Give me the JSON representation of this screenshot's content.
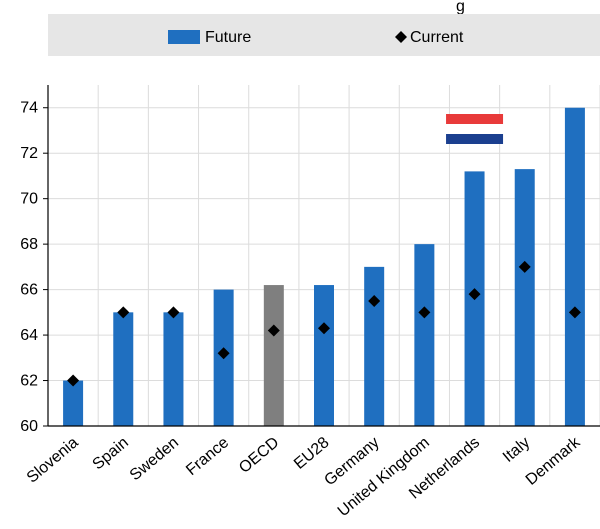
{
  "header_fragment": "g",
  "legend": {
    "future_label": "Future",
    "current_label": "Current"
  },
  "colors": {
    "future": "#1f6fc0",
    "oecd": "#7f7f7f",
    "current_marker": "#000000",
    "legend_bg": "#e6e6e6",
    "fragment_text": "#3a7fc4",
    "flag": [
      "#e83a3a",
      "#ffffff",
      "#1b3f8f"
    ]
  },
  "chart_data": {
    "type": "bar",
    "categories": [
      "Slovenia",
      "Spain",
      "Sweden",
      "France",
      "OECD",
      "EU28",
      "Germany",
      "United Kingdom",
      "Netherlands",
      "Italy",
      "Denmark"
    ],
    "series": [
      {
        "name": "Future",
        "type": "bar",
        "values": [
          62,
          65,
          65,
          66,
          66.2,
          66.2,
          67,
          68,
          71.2,
          71.3,
          74
        ]
      },
      {
        "name": "Current",
        "type": "marker",
        "values": [
          62,
          65,
          65,
          63.2,
          64.2,
          64.3,
          65.5,
          65,
          65.8,
          67,
          65
        ]
      }
    ],
    "highlight_category": "OECD",
    "flag_category": "Netherlands",
    "flag_icon": "netherlands-flag-icon",
    "ylim": [
      60,
      75
    ],
    "yticks": [
      60,
      62,
      64,
      66,
      68,
      70,
      72,
      74
    ],
    "grid": true,
    "legend_position": "top"
  }
}
